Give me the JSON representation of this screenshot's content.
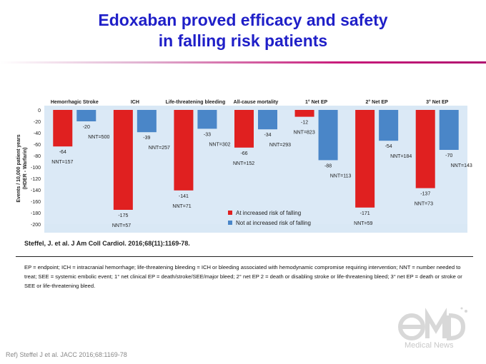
{
  "title_lines": [
    "Edoxaban proved efficacy and safety",
    "in falling risk patients"
  ],
  "citation": "Steffel, J. et al. J Am Coll Cardiol. 2016;68(11):1169-78.",
  "footnote": "EP = endpoint; ICH = intracranial hemorrhage; life-threatening bleeding = ICH or bleeding associated with hemodynamic compromise requiring intervention; NNT = number needed to treat; SEE = systemic embolic event; 1° net clinical EP = death/stroke/SEE/major bleed; 2° net EP 2 = death or disabling stroke or life-threatening bleed; 3° net EP = death or stroke or SEE or life-threatening bleed.",
  "ref": "Ref) Steffel J et al. JACC 2016;68:1169-78",
  "logo": {
    "text": "Medical News"
  },
  "colors": {
    "title": "#1f1fc8",
    "red": "#e02020",
    "blue": "#4a86c8",
    "panel": "#d9e8f5",
    "accent": "#c81a7a"
  },
  "chart_data": {
    "type": "bar",
    "ylabel_lines": [
      "Events / 10,000 patient years",
      "(HDER - Warfarin)"
    ],
    "ylim": [
      -200,
      0
    ],
    "yticks": [
      0,
      -20,
      -40,
      -60,
      -80,
      -100,
      -120,
      -140,
      -160,
      -180,
      -200
    ],
    "categories": [
      "Hemorrhagic Stroke",
      "ICH",
      "Life-threatening bleeding",
      "All-cause mortality",
      "1° Net EP",
      "2° Net EP",
      "3° Net EP"
    ],
    "series": [
      {
        "name": "At increased risk of falling",
        "color": "#e02020",
        "values": [
          -64,
          -175,
          -141,
          -66,
          -12,
          -171,
          -137
        ],
        "nnt": [
          "NNT=157",
          "NNT=57",
          "NNT=71",
          "NNT=152",
          "NNT=823",
          "NNT=59",
          "NNT=73"
        ]
      },
      {
        "name": "Not at increased risk of falling",
        "color": "#4a86c8",
        "values": [
          -20,
          -39,
          -33,
          -34,
          -88,
          -54,
          -70
        ],
        "nnt": [
          "NNT=500",
          "NNT=257",
          "NNT=302",
          "NNT=293",
          "NNT=113",
          "NNT=184",
          "NNT=143"
        ]
      }
    ],
    "legend_position": "bottom-center",
    "grid": false
  }
}
